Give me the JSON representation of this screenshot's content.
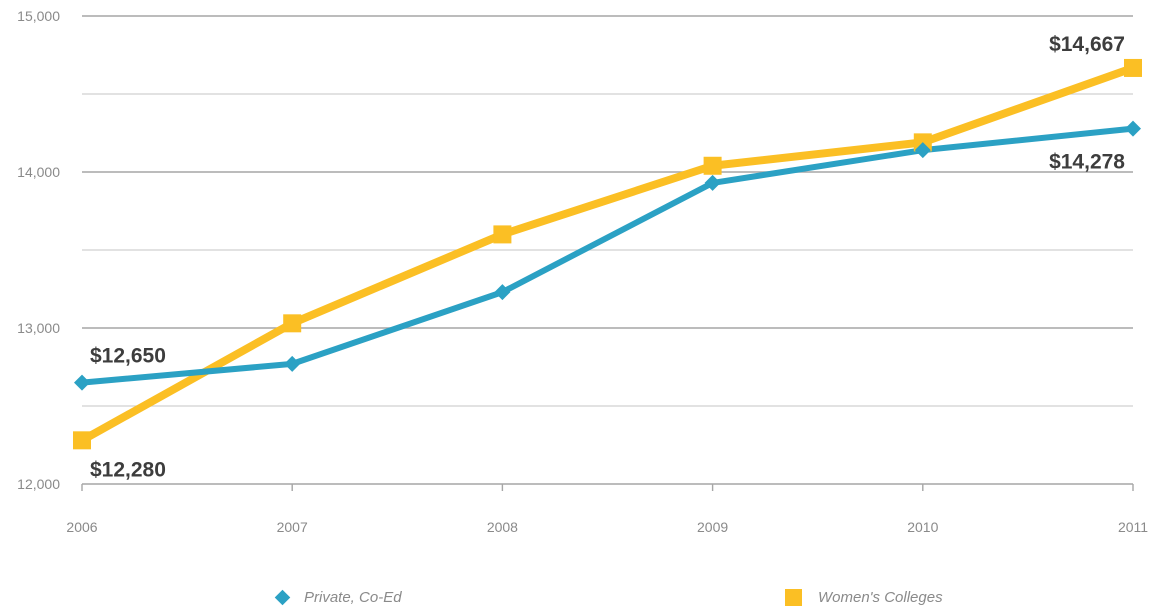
{
  "chart_data": {
    "type": "line",
    "x": [
      "2006",
      "2007",
      "2008",
      "2009",
      "2010",
      "2011"
    ],
    "ylim": [
      12000,
      15000
    ],
    "yticks": [
      "12,000",
      "13,000",
      "14,000",
      "15,000"
    ],
    "grid": true,
    "legend_position": "bottom",
    "series": [
      {
        "name": "Private, Co-Ed",
        "color": "#2ba1c4",
        "marker": "diamond",
        "values": [
          12650,
          12770,
          13230,
          13930,
          14140,
          14278
        ]
      },
      {
        "name": "Women's Colleges",
        "color": "#fbbf24",
        "marker": "square",
        "values": [
          12280,
          13030,
          13600,
          14040,
          14190,
          14667
        ]
      }
    ],
    "annotations": [
      {
        "text": "$12,650",
        "series": 0,
        "index": 0
      },
      {
        "text": "$12,280",
        "series": 1,
        "index": 0
      },
      {
        "text": "$14,667",
        "series": 1,
        "index": 5
      },
      {
        "text": "$14,278",
        "series": 0,
        "index": 5
      }
    ]
  }
}
